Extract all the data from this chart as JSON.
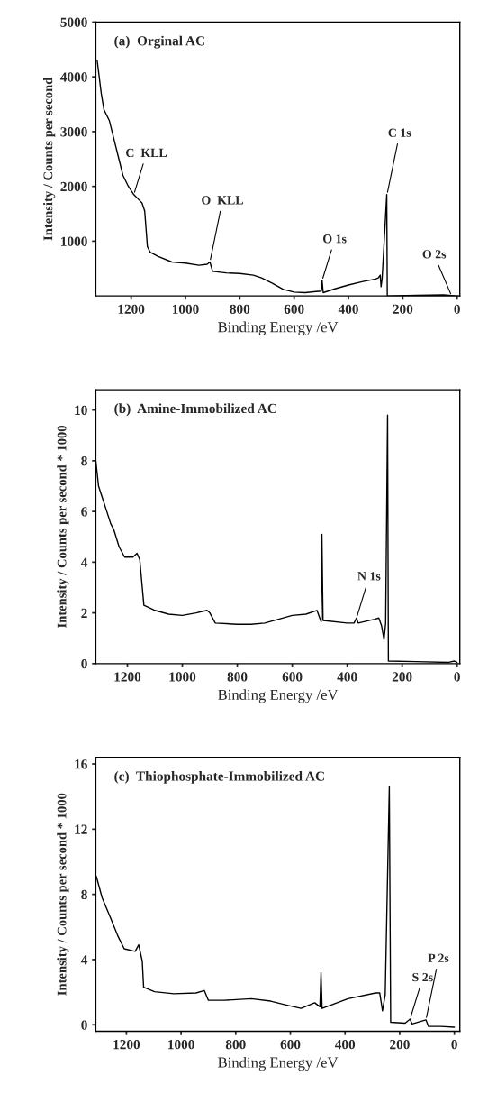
{
  "chart_data": [
    {
      "type": "line",
      "title": "(a)  Orginal AC",
      "xlabel": "Binding Energy /eV",
      "ylabel": "Intensity / Counts per second",
      "color": "#000000",
      "x": [
        1325,
        1310,
        1300,
        1280,
        1260,
        1250,
        1230,
        1210,
        1190,
        1170,
        1160,
        1150,
        1140,
        1130,
        1100,
        1050,
        1000,
        950,
        920,
        910,
        900,
        850,
        800,
        750,
        720,
        680,
        640,
        600,
        560,
        520,
        500,
        497,
        493,
        450,
        400,
        350,
        300,
        290,
        283,
        280,
        276,
        259,
        257,
        150,
        50,
        0,
        -5
      ],
      "values": [
        4300,
        3700,
        3400,
        3200,
        2800,
        2600,
        2200,
        2000,
        1850,
        1750,
        1700,
        1550,
        900,
        800,
        720,
        620,
        600,
        560,
        580,
        620,
        450,
        420,
        410,
        380,
        330,
        230,
        120,
        70,
        60,
        80,
        90,
        280,
        60,
        130,
        200,
        260,
        310,
        330,
        380,
        170,
        320,
        1850,
        0,
        10,
        20,
        0,
        0
      ],
      "xlim": [
        1330,
        -10
      ],
      "ylim": [
        0,
        5000
      ],
      "xticks": [
        1200,
        1000,
        800,
        600,
        400,
        200,
        0
      ],
      "yticks": [
        1000,
        2000,
        3000,
        4000,
        5000
      ],
      "annotations": [
        {
          "text": "C  KLL",
          "x": 1190,
          "y": 1850
        },
        {
          "text": "O  KLL",
          "x": 910,
          "y": 620
        },
        {
          "text": "O 1s",
          "x": 497,
          "y": 280
        },
        {
          "text": "C 1s",
          "x": 258,
          "y": 1850
        },
        {
          "text": "O 2s",
          "x": 20,
          "y": 0
        }
      ]
    },
    {
      "type": "line",
      "title": "(b)  Amine-Immobilized AC",
      "xlabel": "Binding Energy /eV",
      "ylabel": "Intensity / Counts per second * 1000",
      "color": "#000000",
      "x": [
        1315,
        1305,
        1290,
        1275,
        1260,
        1250,
        1230,
        1210,
        1180,
        1165,
        1155,
        1140,
        1120,
        1100,
        1050,
        1000,
        950,
        910,
        900,
        880,
        800,
        750,
        700,
        650,
        600,
        550,
        510,
        500,
        495,
        492,
        488,
        400,
        375,
        366,
        360,
        300,
        285,
        275,
        266,
        260,
        253,
        250,
        150,
        30,
        10,
        0
      ],
      "values": [
        8.0,
        7.0,
        6.5,
        6.0,
        5.5,
        5.3,
        4.6,
        4.2,
        4.2,
        4.35,
        4.1,
        2.3,
        2.2,
        2.1,
        1.95,
        1.9,
        2.0,
        2.1,
        2.0,
        1.6,
        1.55,
        1.55,
        1.6,
        1.75,
        1.9,
        1.95,
        2.1,
        1.8,
        1.65,
        5.1,
        1.7,
        1.6,
        1.6,
        1.8,
        1.6,
        1.75,
        1.8,
        1.5,
        0.95,
        1.6,
        9.8,
        0.1,
        0.08,
        0.05,
        0.1,
        0.05
      ],
      "xlim": [
        1315,
        -10
      ],
      "ylim": [
        0,
        10.8
      ],
      "xticks": [
        1200,
        1000,
        800,
        600,
        400,
        200,
        0
      ],
      "yticks": [
        0,
        2,
        4,
        6,
        8,
        10
      ],
      "annotations": [
        {
          "text": "N 1s",
          "x": 366,
          "y": 1.8
        }
      ]
    },
    {
      "type": "line",
      "title": "(c)  Thiophosphate-Immobilized AC",
      "xlabel": "Binding Energy /eV",
      "ylabel": "Intensity / Counts per second * 1000",
      "color": "#000000",
      "x": [
        1310,
        1289,
        1259,
        1230,
        1208,
        1168,
        1155,
        1142,
        1137,
        1097,
        1026,
        945,
        915,
        900,
        844,
        743,
        672,
        612,
        561,
        511,
        492,
        488,
        484,
        389,
        288,
        273,
        263,
        253,
        238,
        233,
        180,
        162,
        155,
        104,
        95,
        50,
        0
      ],
      "values": [
        9.1,
        7.8,
        6.6,
        5.4,
        4.66,
        4.5,
        4.9,
        3.9,
        2.3,
        2.03,
        1.9,
        1.95,
        2.1,
        1.5,
        1.5,
        1.6,
        1.45,
        1.2,
        1.0,
        1.35,
        1.1,
        3.2,
        1.0,
        1.6,
        1.95,
        1.95,
        0.85,
        1.85,
        14.6,
        0.15,
        0.1,
        0.35,
        0.05,
        0.3,
        -0.1,
        -0.1,
        -0.15
      ],
      "xlim": [
        1312,
        -20
      ],
      "ylim": [
        -0.4,
        16.4
      ],
      "xticks": [
        1200,
        1000,
        800,
        600,
        400,
        200,
        0
      ],
      "yticks": [
        0,
        4,
        8,
        12,
        16
      ],
      "annotations": [
        {
          "text": "S 2s",
          "x": 162,
          "y": 0.35
        },
        {
          "text": "P 2s",
          "x": 104,
          "y": 0.3
        }
      ]
    }
  ]
}
